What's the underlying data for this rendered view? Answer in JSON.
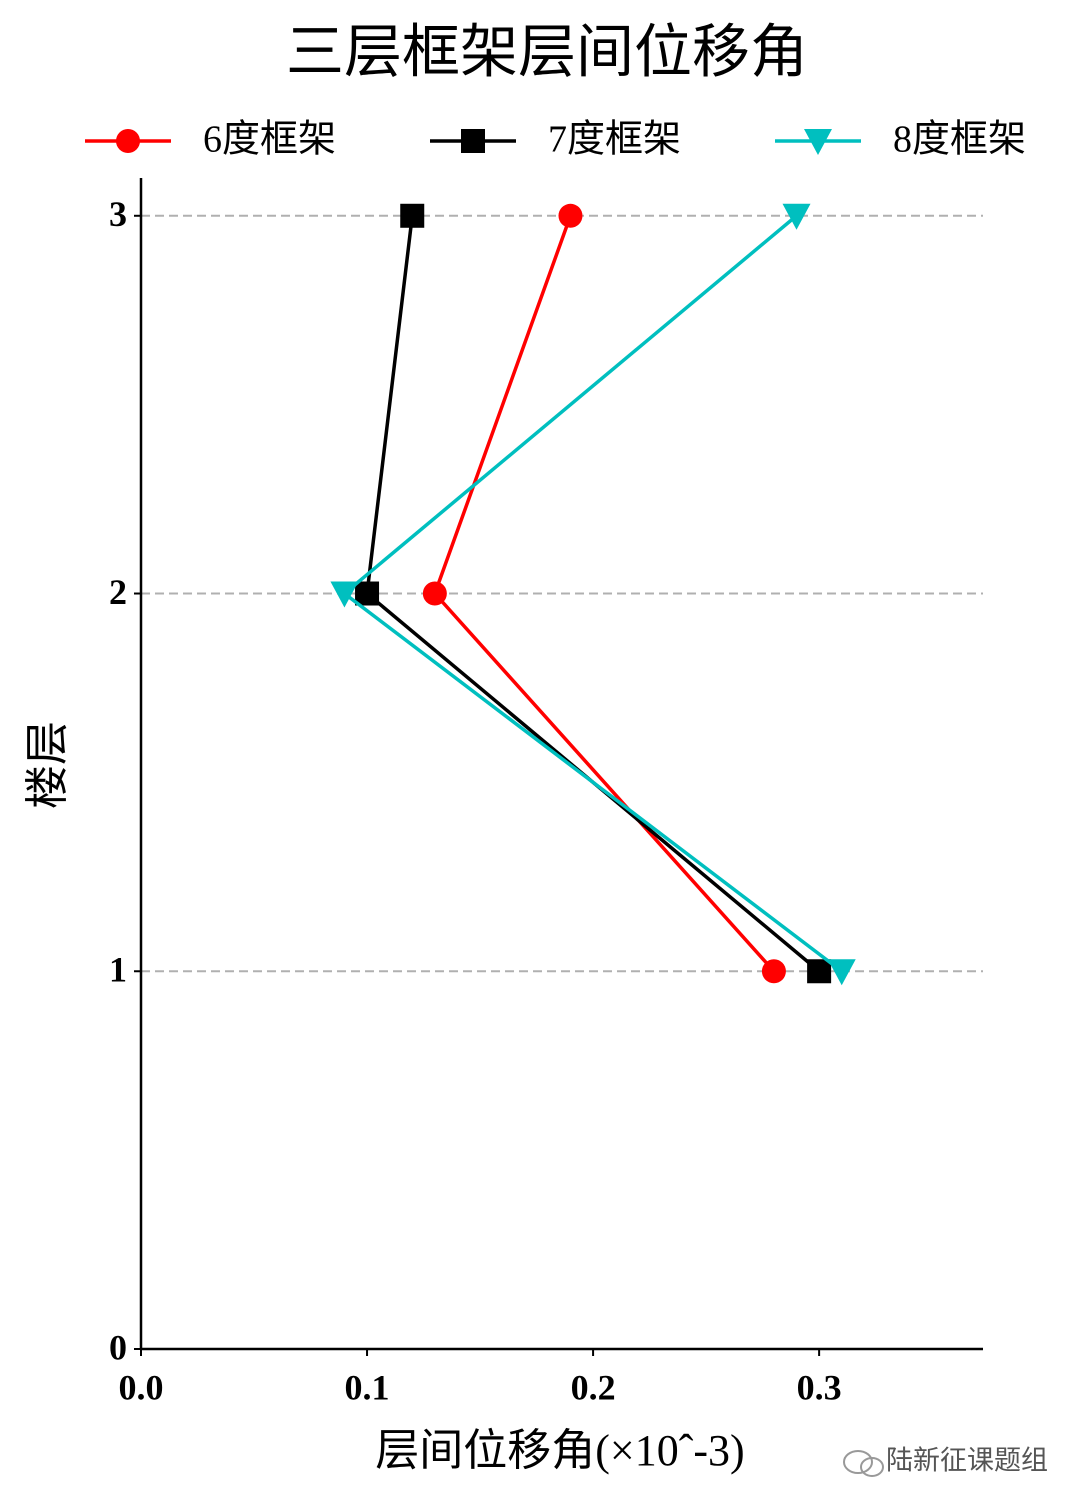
{
  "chart_data": {
    "type": "line",
    "title": "三层框架层间位移角",
    "x_label": "层间位移角(×10ˆ-3)",
    "y_label": "楼层",
    "floors": [
      1,
      2,
      3
    ],
    "series": [
      {
        "name": "6度框架",
        "color": "#ff0000",
        "marker": "circle",
        "values": [
          0.28,
          0.13,
          0.19
        ]
      },
      {
        "name": "7度框架",
        "color": "#000000",
        "marker": "square",
        "values": [
          0.3,
          0.1,
          0.12
        ]
      },
      {
        "name": "8度框架",
        "color": "#00bfbf",
        "marker": "triangle-down",
        "values": [
          0.31,
          0.09,
          0.29
        ]
      }
    ],
    "xlim": [
      0,
      0.3725
    ],
    "xticks": [
      {
        "value": 0,
        "label": "0.0"
      },
      0.1,
      0.2,
      0.3
    ],
    "ylim": [
      0,
      3.1
    ],
    "yticks": [
      0,
      1,
      2,
      3
    ],
    "grid": true,
    "legend": "top",
    "watermark": "陆新征课题组"
  }
}
